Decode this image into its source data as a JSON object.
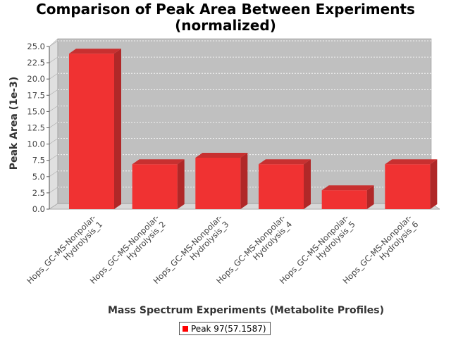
{
  "chart_data": {
    "type": "bar",
    "title_lines": [
      "Comparison of Peak Area Between Experiments",
      "(normalized)"
    ],
    "xlabel": "Mass Spectrum Experiments (Metabolite Profiles)",
    "ylabel": "Peak Area (1e-3)",
    "categories": [
      [
        "Hops_GC-MS-Nonpolar-",
        "Hydrolysis_1"
      ],
      [
        "Hops_GC-MS-Nonpolar-",
        "Hydrolysis_2"
      ],
      [
        "Hops_GC-MS-Nonpolar-",
        "Hydrolysis_3"
      ],
      [
        "Hops_GC-MS-Nonpolar-",
        "Hydrolysis_4"
      ],
      [
        "Hops_GC-MS-Nonpolar-",
        "Hydrolysis_5"
      ],
      [
        "Hops_GC-MS-Nonpolar-",
        "Hydrolysis_6"
      ]
    ],
    "series": [
      {
        "name": "Peak 97(57.1587)",
        "values": [
          23.9,
          6.9,
          7.9,
          6.9,
          2.9,
          6.9
        ]
      }
    ],
    "ylim": [
      0,
      25.0
    ],
    "yticks": [
      "0.0",
      "2.5",
      "5.0",
      "7.5",
      "10.0",
      "12.5",
      "15.0",
      "17.5",
      "20.0",
      "22.5",
      "25.0"
    ],
    "grid": true,
    "legend_position": "bottom",
    "colors": {
      "bar": "#ff0000",
      "plot_background": "#c0c0c0",
      "grid": "#ffffff"
    }
  }
}
